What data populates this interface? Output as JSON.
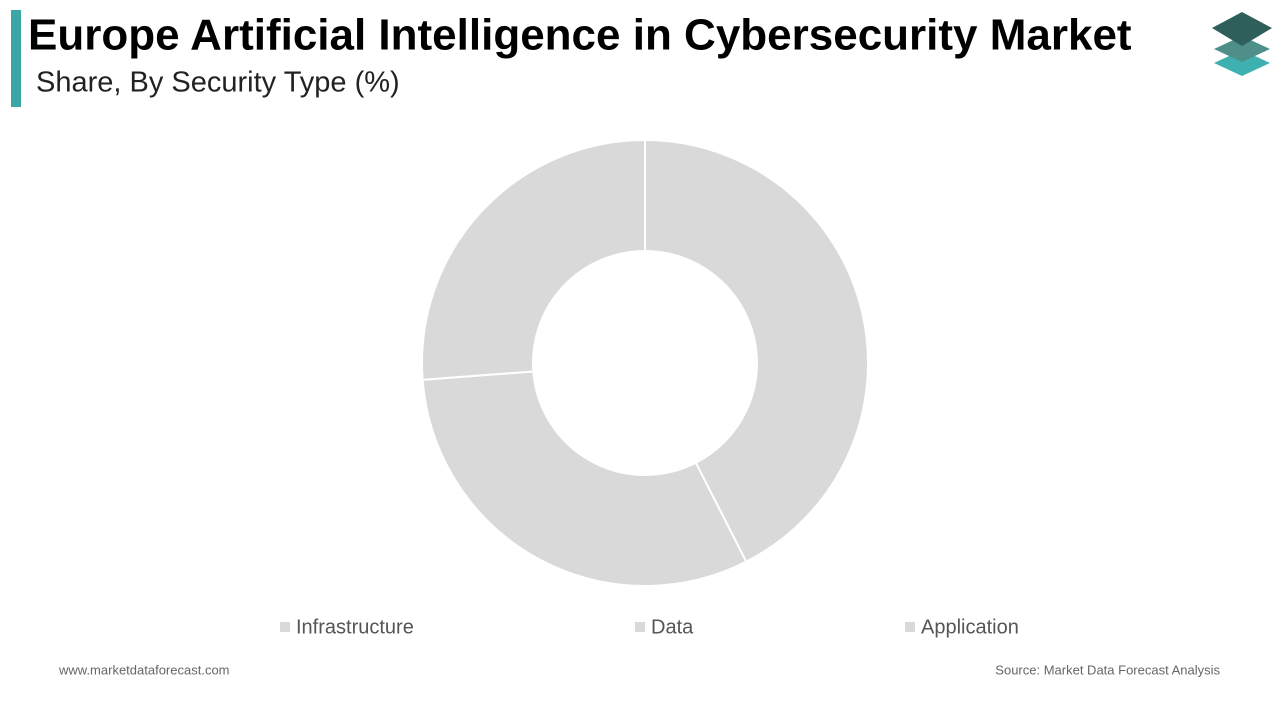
{
  "chart_data": {
    "type": "donut",
    "title": "Europe Artificial Intelligence in Cybersecurity Market",
    "subtitle": "Share, By Security Type (%)",
    "categories": [
      "Infrastructure",
      "Data",
      "Application"
    ],
    "values": [
      42.5,
      31.3,
      26.2
    ],
    "colors": [
      "#d9d9d9",
      "#d9d9d9",
      "#d9d9d9"
    ],
    "legend": "bottom"
  },
  "footer": {
    "website": "www.marketdataforecast.com",
    "source": "Source: Market Data Forecast Analysis"
  }
}
